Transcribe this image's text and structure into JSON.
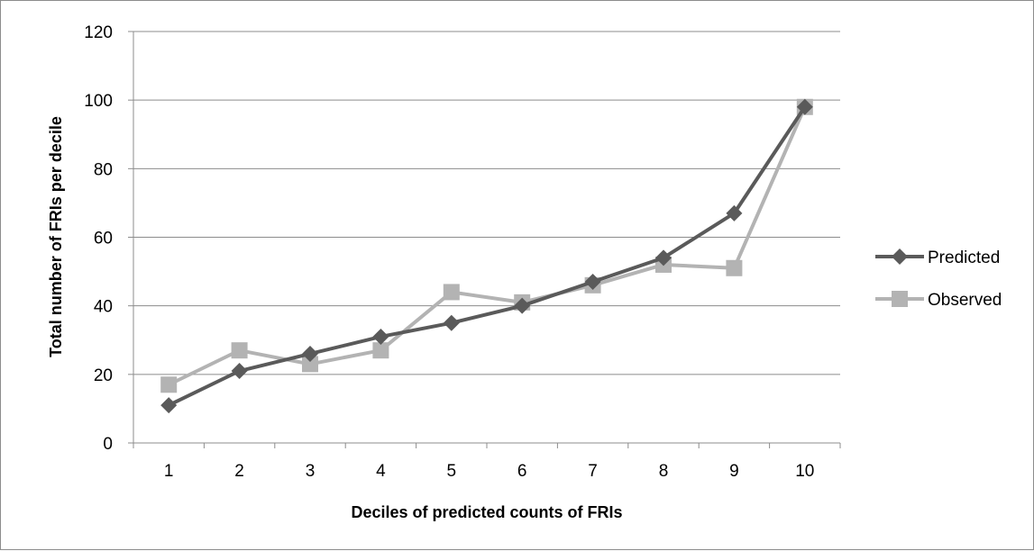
{
  "chart_data": {
    "type": "line",
    "title": "",
    "xlabel": "Deciles of predicted counts of FRIs",
    "ylabel": "Total number of FRIs per decile",
    "categories": [
      "1",
      "2",
      "3",
      "4",
      "5",
      "6",
      "7",
      "8",
      "9",
      "10"
    ],
    "ylim": [
      0,
      120
    ],
    "yticks": [
      0,
      20,
      40,
      60,
      80,
      100,
      120
    ],
    "grid": true,
    "legend_position": "right",
    "series": [
      {
        "name": "Predicted",
        "color": "#5a5a5a",
        "marker": "diamond",
        "values": [
          11,
          21,
          26,
          31,
          35,
          40,
          47,
          54,
          67,
          98
        ]
      },
      {
        "name": "Observed",
        "color": "#b3b3b3",
        "marker": "square",
        "values": [
          17,
          27,
          23,
          27,
          44,
          41,
          46,
          52,
          51,
          98
        ]
      }
    ]
  }
}
